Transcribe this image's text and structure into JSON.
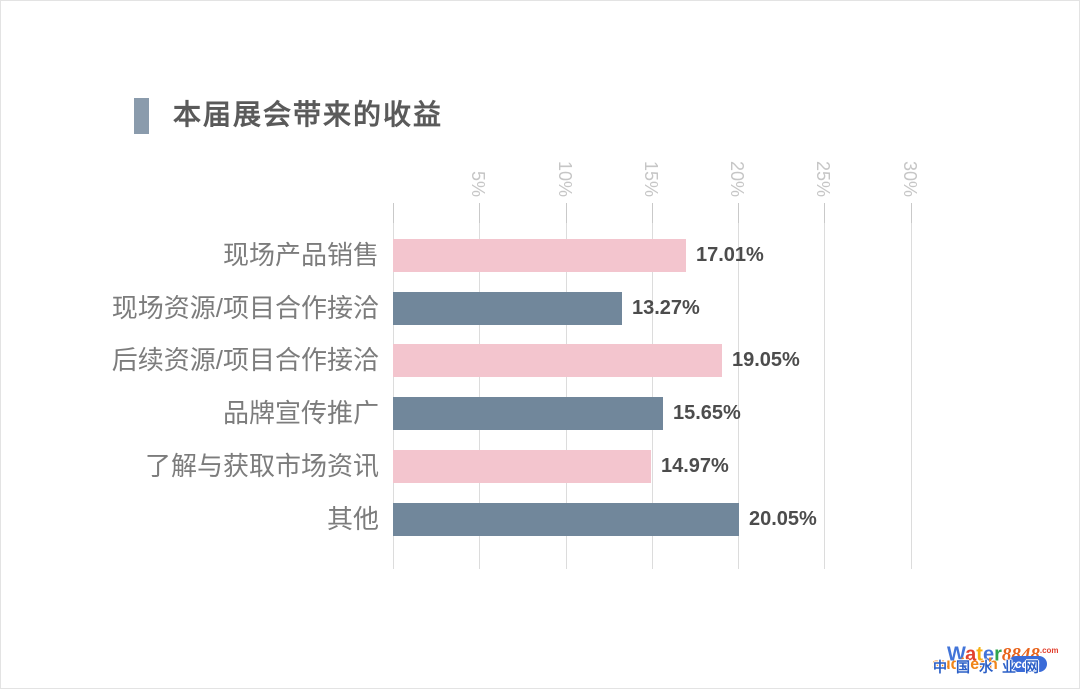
{
  "title": {
    "text": "本届展会带来的收益",
    "marker_color": "#8a9bac",
    "text_color": "#5a5a5a"
  },
  "chart_data": {
    "type": "bar",
    "orientation": "horizontal",
    "title": "本届展会带来的收益",
    "categories": [
      "现场产品销售",
      "现场资源/项目合作接洽",
      "后续资源/项目合作接洽",
      "品牌宣传推广",
      "了解与获取市场资讯",
      "其他"
    ],
    "values": [
      17.01,
      13.27,
      19.05,
      15.65,
      14.97,
      20.05
    ],
    "value_labels": [
      "17.01%",
      "13.27%",
      "19.05%",
      "15.65%",
      "14.97%",
      "20.05%"
    ],
    "bar_colors": [
      "#f3c5ce",
      "#71879b",
      "#f3c5ce",
      "#71879b",
      "#f3c5ce",
      "#71879b"
    ],
    "xlabel": "",
    "ylabel": "",
    "xlim": [
      0,
      30
    ],
    "grid": true,
    "x_axis": {
      "gridline_values": [
        0,
        5,
        10,
        15,
        20,
        25,
        30
      ],
      "tick_labels": [
        "",
        "5%",
        "10%",
        "15%",
        "20%",
        "25%",
        "30%"
      ],
      "tick_label_position": "top",
      "tick_label_rotation_deg": 90
    },
    "colors": {
      "pink": "#f3c5ce",
      "slate": "#71879b",
      "gridline": "#dcdcdc",
      "tick_text": "#c6c6c6"
    }
  },
  "watermark": {
    "water_letters": [
      {
        "ch": "W",
        "color": "#4274d8"
      },
      {
        "ch": "a",
        "color": "#e2402f"
      },
      {
        "ch": "t",
        "color": "#f7b012"
      },
      {
        "ch": "e",
        "color": "#4274d8"
      },
      {
        "ch": "r",
        "color": "#2fa44d"
      }
    ],
    "number": "8848",
    "number_color": "#e8641c",
    "dotcom_small": ".com",
    "dotcom_small_color": "#e2402f",
    "sub_en": "suqitech",
    "sub_en_color": "#f08519",
    "badge": "com",
    "badge_bg": "#3a6bd8",
    "cn": "中国水业网",
    "cn_color": "#2b5fc7"
  }
}
